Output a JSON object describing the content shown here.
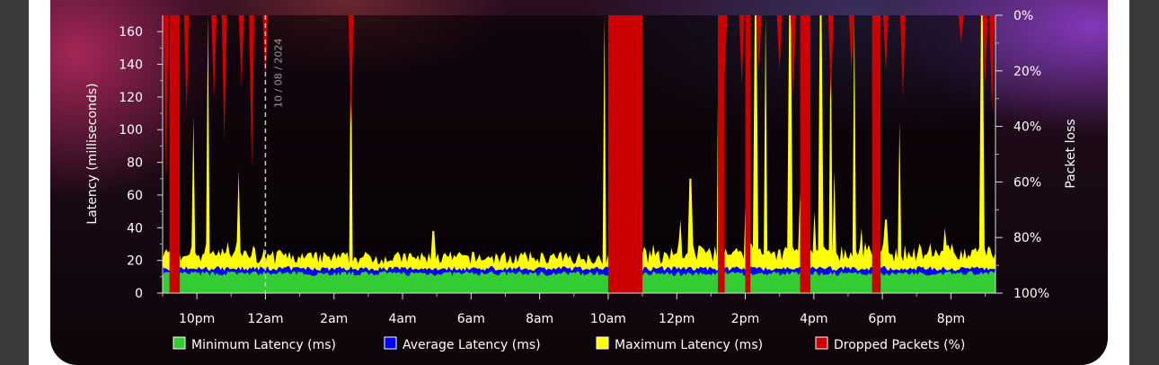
{
  "chart_data": {
    "type": "area",
    "ylabel": "Latency (milliseconds)",
    "y2label": "Packet loss",
    "ylim": [
      0,
      170
    ],
    "yticks": [
      0,
      20,
      40,
      60,
      80,
      100,
      120,
      140,
      160
    ],
    "y2ticks": [
      "0%",
      "20%",
      "40%",
      "60%",
      "80%",
      "100%"
    ],
    "x_tick_labels": [
      "10pm",
      "12am",
      "2am",
      "4am",
      "6am",
      "8am",
      "10am",
      "12pm",
      "2pm",
      "4pm",
      "6pm",
      "8pm"
    ],
    "x_range_hours": [
      21.0,
      45.3
    ],
    "x_tick_hours": [
      22,
      24,
      26,
      28,
      30,
      32,
      34,
      36,
      38,
      40,
      42,
      44
    ],
    "date_marker": {
      "hour": 24,
      "label": "10 / 08 / 2024"
    },
    "grid": false,
    "legend_position": "bottom",
    "series": [
      {
        "name": "Minimum Latency (ms)",
        "color": "#33cc33",
        "typical": 12
      },
      {
        "name": "Average Latency (ms)",
        "color": "#0000ff",
        "typical": 15
      },
      {
        "name": "Maximum Latency (ms)",
        "color": "#ffff00",
        "typical": 20,
        "spikes": [
          [
            21.9,
            108
          ],
          [
            22.3,
            170
          ],
          [
            23.2,
            75
          ],
          [
            26.5,
            170
          ],
          [
            28.9,
            38
          ],
          [
            33.9,
            170
          ],
          [
            34.1,
            105
          ],
          [
            36.1,
            45
          ],
          [
            36.4,
            70
          ],
          [
            37.2,
            170
          ],
          [
            38.0,
            60
          ],
          [
            38.3,
            170
          ],
          [
            38.6,
            170
          ],
          [
            39.3,
            170
          ],
          [
            39.6,
            60
          ],
          [
            39.8,
            80
          ],
          [
            40.0,
            50
          ],
          [
            40.2,
            170
          ],
          [
            40.5,
            170
          ],
          [
            40.6,
            75
          ],
          [
            41.2,
            170
          ],
          [
            41.4,
            40
          ],
          [
            42.1,
            45
          ],
          [
            42.5,
            105
          ],
          [
            43.8,
            40
          ],
          [
            44.9,
            170
          ]
        ]
      },
      {
        "name": "Dropped Packets (%)",
        "color": "#cc0000",
        "blocks": [
          [
            21.2,
            21.5,
            100
          ],
          [
            34.0,
            35.0,
            100
          ],
          [
            37.2,
            37.4,
            100
          ],
          [
            38.0,
            38.15,
            100
          ],
          [
            39.6,
            39.9,
            100
          ],
          [
            41.7,
            41.95,
            100
          ]
        ],
        "spikes": [
          [
            21.1,
            60
          ],
          [
            21.3,
            100
          ],
          [
            21.7,
            35
          ],
          [
            22.5,
            30
          ],
          [
            22.8,
            45
          ],
          [
            23.3,
            25
          ],
          [
            23.6,
            55
          ],
          [
            24.0,
            25
          ],
          [
            26.5,
            40
          ],
          [
            37.4,
            20
          ],
          [
            37.9,
            25
          ],
          [
            38.4,
            20
          ],
          [
            39.0,
            20
          ],
          [
            39.4,
            30
          ],
          [
            40.5,
            30
          ],
          [
            41.1,
            20
          ],
          [
            42.1,
            20
          ],
          [
            42.6,
            30
          ],
          [
            44.3,
            10
          ],
          [
            45.0,
            25
          ],
          [
            45.2,
            35
          ]
        ]
      }
    ]
  }
}
